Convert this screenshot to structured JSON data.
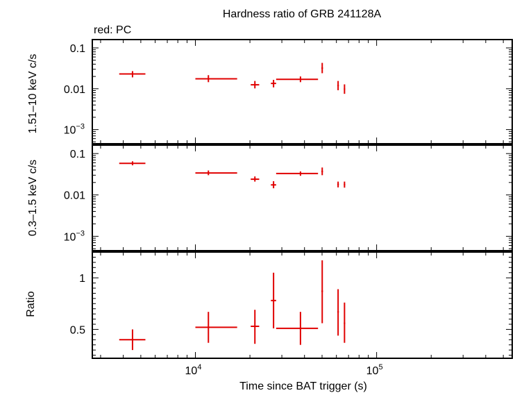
{
  "chart_data": {
    "type": "scatter",
    "title": "Hardness ratio of GRB 241128A",
    "legend_note": "red: PC",
    "xlabel": "Time since BAT trigger (s)",
    "xscale": "log",
    "xlim": [
      2700,
      560000
    ],
    "x_ticks": [
      {
        "value": 10000,
        "base": "10",
        "exp": "4"
      },
      {
        "value": 100000,
        "base": "10",
        "exp": "5"
      }
    ],
    "series_color": "#e00000",
    "panels": [
      {
        "id": "hard",
        "ylabel": "1.51–10 keV c/s",
        "yscale": "log",
        "ylim": [
          0.00045,
          0.16
        ],
        "y_ticks": [
          {
            "value": 0.1,
            "label": "0.1"
          },
          {
            "value": 0.01,
            "label": "0.01"
          },
          {
            "value": 0.001,
            "base": "10",
            "exp": "−3"
          }
        ],
        "points": [
          {
            "x": 4500,
            "xlo": 3800,
            "xhi": 5300,
            "y": 0.023,
            "ylo": 0.019,
            "yhi": 0.027
          },
          {
            "x": 11800,
            "xlo": 10000,
            "xhi": 17000,
            "y": 0.0175,
            "ylo": 0.0145,
            "yhi": 0.0215
          },
          {
            "x": 21300,
            "xlo": 20200,
            "xhi": 22500,
            "y": 0.0125,
            "ylo": 0.0102,
            "yhi": 0.0155
          },
          {
            "x": 27000,
            "xlo": 26100,
            "xhi": 27900,
            "y": 0.0135,
            "ylo": 0.0108,
            "yhi": 0.0165
          },
          {
            "x": 38000,
            "xlo": 27900,
            "xhi": 47500,
            "y": 0.017,
            "ylo": 0.0145,
            "yhi": 0.02
          },
          {
            "x": 50100,
            "xlo": 49600,
            "xhi": 50600,
            "y": 0.032,
            "ylo": 0.024,
            "yhi": 0.043
          },
          {
            "x": 61300,
            "xlo": 60700,
            "xhi": 61900,
            "y": 0.012,
            "ylo": 0.0092,
            "yhi": 0.0155
          },
          {
            "x": 66500,
            "xlo": 65900,
            "xhi": 67100,
            "y": 0.0098,
            "ylo": 0.0075,
            "yhi": 0.0128
          }
        ]
      },
      {
        "id": "soft",
        "ylabel": "0.3–1.5 keV c/s",
        "yscale": "log",
        "ylim": [
          0.00045,
          0.16
        ],
        "y_ticks": [
          {
            "value": 0.1,
            "label": "0.1"
          },
          {
            "value": 0.01,
            "label": "0.01"
          },
          {
            "value": 0.001,
            "base": "10",
            "exp": "−3"
          }
        ],
        "points": [
          {
            "x": 4500,
            "xlo": 3800,
            "xhi": 5300,
            "y": 0.058,
            "ylo": 0.052,
            "yhi": 0.065
          },
          {
            "x": 11800,
            "xlo": 10000,
            "xhi": 17000,
            "y": 0.034,
            "ylo": 0.03,
            "yhi": 0.039
          },
          {
            "x": 21300,
            "xlo": 20200,
            "xhi": 22500,
            "y": 0.024,
            "ylo": 0.021,
            "yhi": 0.028
          },
          {
            "x": 27000,
            "xlo": 26100,
            "xhi": 27900,
            "y": 0.0175,
            "ylo": 0.0145,
            "yhi": 0.0215
          },
          {
            "x": 38000,
            "xlo": 27900,
            "xhi": 47500,
            "y": 0.033,
            "ylo": 0.029,
            "yhi": 0.037
          },
          {
            "x": 50100,
            "xlo": 49600,
            "xhi": 50600,
            "y": 0.037,
            "ylo": 0.03,
            "yhi": 0.046
          },
          {
            "x": 61300,
            "xlo": 60700,
            "xhi": 61900,
            "y": 0.018,
            "ylo": 0.0152,
            "yhi": 0.021
          },
          {
            "x": 66500,
            "xlo": 65900,
            "xhi": 67100,
            "y": 0.0178,
            "ylo": 0.015,
            "yhi": 0.021
          }
        ]
      },
      {
        "id": "ratio",
        "ylabel": "Ratio",
        "yscale": "linear",
        "ylim": [
          0.22,
          1.25
        ],
        "y_ticks": [
          {
            "value": 1,
            "label": "1"
          },
          {
            "value": 0.5,
            "label": "0.5"
          }
        ],
        "points": [
          {
            "x": 4500,
            "xlo": 3800,
            "xhi": 5300,
            "y": 0.4,
            "ylo": 0.3,
            "yhi": 0.5
          },
          {
            "x": 11800,
            "xlo": 10000,
            "xhi": 17000,
            "y": 0.52,
            "ylo": 0.37,
            "yhi": 0.67
          },
          {
            "x": 21300,
            "xlo": 20200,
            "xhi": 22500,
            "y": 0.53,
            "ylo": 0.36,
            "yhi": 0.69
          },
          {
            "x": 27000,
            "xlo": 26100,
            "xhi": 27900,
            "y": 0.78,
            "ylo": 0.51,
            "yhi": 1.05
          },
          {
            "x": 38000,
            "xlo": 27900,
            "xhi": 47500,
            "y": 0.51,
            "ylo": 0.35,
            "yhi": 0.67
          },
          {
            "x": 50100,
            "xlo": 49600,
            "xhi": 50600,
            "y": 0.87,
            "ylo": 0.56,
            "yhi": 1.17
          },
          {
            "x": 61300,
            "xlo": 60700,
            "xhi": 61900,
            "y": 0.67,
            "ylo": 0.44,
            "yhi": 0.89
          },
          {
            "x": 66500,
            "xlo": 65900,
            "xhi": 67100,
            "y": 0.56,
            "ylo": 0.37,
            "yhi": 0.76
          }
        ]
      }
    ]
  }
}
